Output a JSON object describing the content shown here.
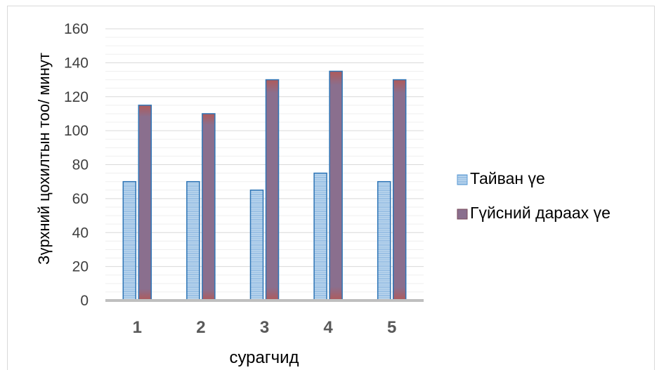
{
  "chart_data": {
    "type": "bar",
    "categories": [
      "1",
      "2",
      "3",
      "4",
      "5"
    ],
    "series": [
      {
        "name": "Тайван үе",
        "values": [
          70,
          70,
          65,
          75,
          70
        ],
        "color": "#9dc3e6",
        "edge": "#2e75b6"
      },
      {
        "name": "Гүйсний дараах үе",
        "values": [
          115,
          110,
          130,
          135,
          130
        ],
        "color": "#8a6f8e",
        "edge": "#2e75b6"
      }
    ],
    "yticks": [
      "0",
      "20",
      "40",
      "60",
      "80",
      "100",
      "120",
      "140",
      "160"
    ],
    "xlabel": "сурагчид",
    "ylabel": "Зүрхний цохилтын тоо/ минут",
    "ylim": [
      0,
      160
    ],
    "grid": true,
    "legend": "right"
  }
}
